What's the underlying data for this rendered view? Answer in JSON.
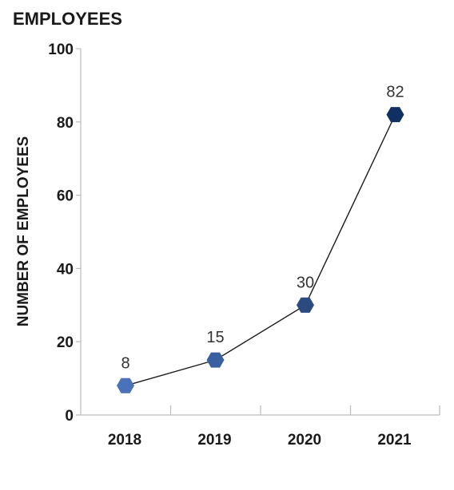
{
  "chart_data": {
    "type": "line",
    "title": "EMPLOYEES",
    "xlabel": "",
    "ylabel": "NUMBER OF EMPLOYEES",
    "categories": [
      "2018",
      "2019",
      "2020",
      "2021"
    ],
    "series": [
      {
        "values": [
          8,
          15,
          30,
          82
        ]
      }
    ],
    "ylim": [
      0,
      100
    ],
    "yticks": [
      0,
      20,
      40,
      60,
      80,
      100
    ],
    "yticks_labels": [
      "0",
      "20",
      "40",
      "60",
      "80",
      "100"
    ],
    "data_labels": [
      "8",
      "15",
      "30",
      "82"
    ],
    "grid": false,
    "legend": "none",
    "marker": "hexagon",
    "colors": {
      "line": "#1a1a1a",
      "axis": "#bbbbbb",
      "markers": [
        "#4a72b8",
        "#3a5fa0",
        "#2a4a80",
        "#0f3060"
      ]
    }
  }
}
